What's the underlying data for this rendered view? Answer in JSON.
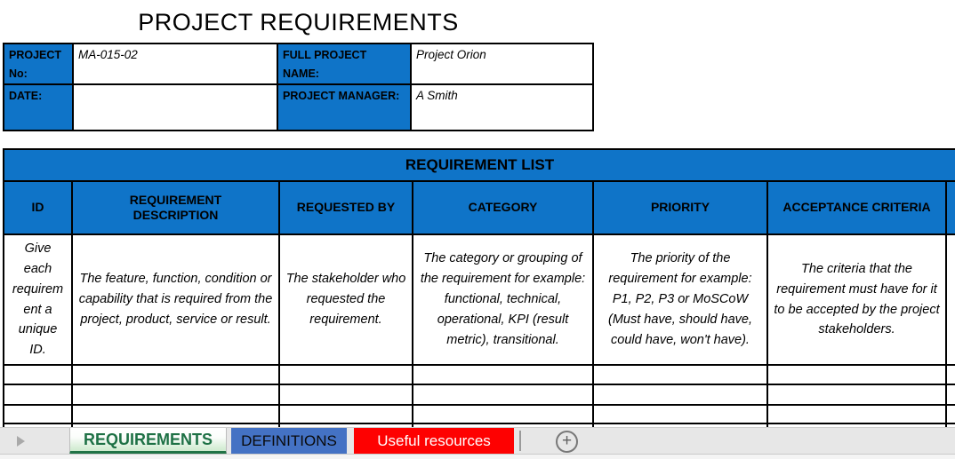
{
  "title": "PROJECT REQUIREMENTS",
  "info": {
    "project_no_label": "PROJECT No:",
    "project_no_value": "MA-015-02",
    "full_project_name_label": "FULL PROJECT NAME:",
    "full_project_name_value": "Project Orion",
    "date_label": "DATE:",
    "date_value": "",
    "project_manager_label": "PROJECT MANAGER:",
    "project_manager_value": "A Smith"
  },
  "requirement_list": {
    "title": "REQUIREMENT LIST",
    "headers": [
      "ID",
      "REQUIREMENT DESCRIPTION",
      "REQUESTED BY",
      "CATEGORY",
      "PRIORITY",
      "ACCEPTANCE CRITERIA"
    ],
    "descriptions": [
      "Give each requirement a unique ID.",
      "The feature, function, condition or capability that is required from the project, product, service or result.",
      "The stakeholder who requested the requirement.",
      "The category or grouping of the requirement for example: functional, technical, operational, KPI (result metric), transitional.",
      "The priority of the requirement for example: P1, P2, P3 or MoSCoW (Must have, should have, could have, won't have).",
      "The criteria that the requirement must have for it to be accepted by the project stakeholders."
    ],
    "empty_row_count": 4
  },
  "sheet_tabs": {
    "items": [
      {
        "label": "REQUIREMENTS",
        "active": true,
        "tab_color": "#217346",
        "text_color": "#1E7145"
      },
      {
        "label": "DEFINITIONS",
        "active": false,
        "tab_color": "#4472C4",
        "text_color": "#0a0a0a"
      },
      {
        "label": "Useful resources",
        "active": false,
        "tab_color": "#FE0101",
        "text_color": "#ffffff"
      }
    ],
    "add_sheet_glyph": "+",
    "nav_arrow": "right"
  },
  "colors": {
    "table_header_blue": "#0F74C8",
    "active_tab_green": "#217346",
    "tabbar_background": "#e7e7e7",
    "border_black": "#000000"
  }
}
